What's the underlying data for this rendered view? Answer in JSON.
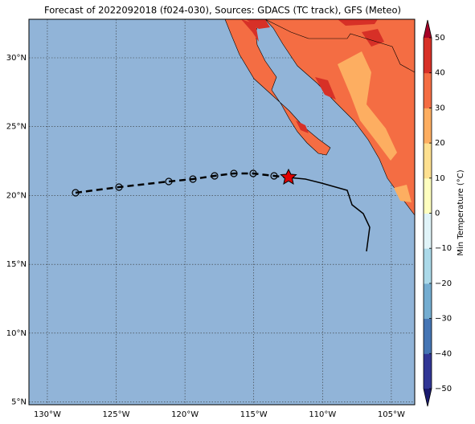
{
  "title": "Forecast of 2022092018 (f024-030), Sources: GDACS (TC track), GFS (Meteo)",
  "map": {
    "xticks": [
      {
        "value": -130,
        "label": "130°W"
      },
      {
        "value": -125,
        "label": "125°W"
      },
      {
        "value": -120,
        "label": "120°W"
      },
      {
        "value": -115,
        "label": "115°W"
      },
      {
        "value": -110,
        "label": "110°W"
      },
      {
        "value": -105,
        "label": "105°W"
      }
    ],
    "yticks": [
      {
        "value": 30,
        "label": "30°N"
      },
      {
        "value": 25,
        "label": "25°N"
      },
      {
        "value": 20,
        "label": "20°N"
      },
      {
        "value": 15,
        "label": "15°N"
      },
      {
        "value": 10,
        "label": "10°N"
      },
      {
        "value": 5,
        "label": "5°N"
      }
    ],
    "xlim": [
      -131.34,
      -103.3
    ],
    "ylim": [
      4.8,
      32.8
    ]
  },
  "colorbar": {
    "label": "Min Temperature (°C)",
    "lim": [
      -50,
      50
    ],
    "ticks": [
      {
        "value": 50,
        "label": "50"
      },
      {
        "value": 40,
        "label": "40"
      },
      {
        "value": 30,
        "label": "30"
      },
      {
        "value": 20,
        "label": "20"
      },
      {
        "value": 10,
        "label": "10"
      },
      {
        "value": 0,
        "label": "0"
      },
      {
        "value": -10,
        "label": "−10"
      },
      {
        "value": -20,
        "label": "−20"
      },
      {
        "value": -30,
        "label": "−30"
      },
      {
        "value": -40,
        "label": "−40"
      },
      {
        "value": -50,
        "label": "−50"
      }
    ],
    "colors": [
      "#313695",
      "#4575b4",
      "#74add1",
      "#abd9e9",
      "#e0f3f8",
      "#ffffbf",
      "#fee090",
      "#fdae61",
      "#f46d43",
      "#d73027"
    ],
    "under": "#1a1a6e",
    "over": "#a50026"
  }
}
